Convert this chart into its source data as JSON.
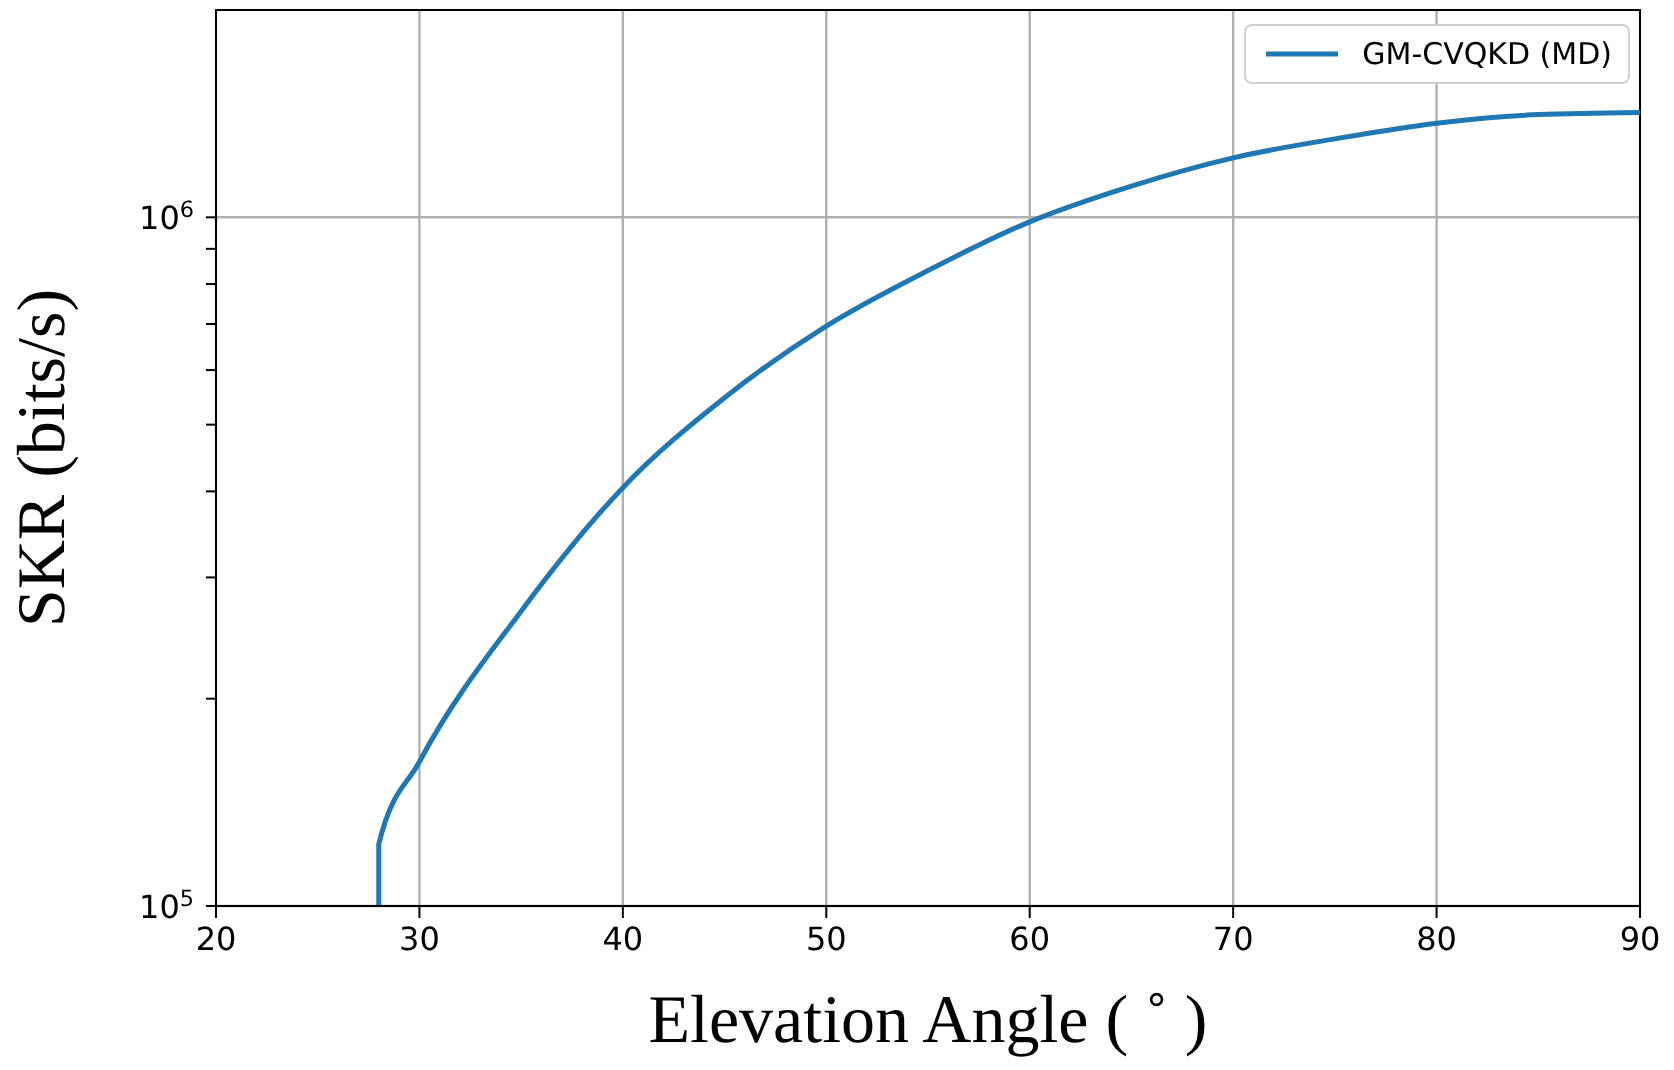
{
  "chart_data": {
    "type": "line",
    "xlabel": "Elevation Angle ( ˚ )",
    "ylabel": "SKR (bits/s)",
    "log": "y",
    "grid": true,
    "legend": "top right",
    "marker": "none",
    "line_style": "solid",
    "xlim": [
      20,
      90
    ],
    "xticks": [
      20,
      30,
      40,
      50,
      60,
      70,
      80,
      90
    ],
    "ylim": [
      100000,
      2000000
    ],
    "yticks": [
      {
        "value": 100000,
        "label": "10$^{5}$"
      },
      {
        "value": 200000,
        "label": null
      },
      {
        "value": 300000,
        "label": null
      },
      {
        "value": 400000,
        "label": null
      },
      {
        "value": 500000,
        "label": null
      },
      {
        "value": 600000,
        "label": null
      },
      {
        "value": 700000,
        "label": null
      },
      {
        "value": 800000,
        "label": null
      },
      {
        "value": 900000,
        "label": null
      },
      {
        "value": 1000000,
        "label": "10$^{6}$"
      }
    ],
    "x": [
      28,
      28,
      30,
      35,
      40,
      45,
      50,
      55,
      60,
      65,
      70,
      75,
      80,
      85,
      90
    ],
    "series": [
      {
        "name": "GM-CVQKD (MD)",
        "color": "#1f77b4",
        "values": [
          100000,
          123000,
          162000,
          268000,
          405000,
          547000,
          695000,
          837000,
          985000,
          1110000,
          1220000,
          1300000,
          1370000,
          1410000,
          1420000
        ]
      }
    ]
  }
}
